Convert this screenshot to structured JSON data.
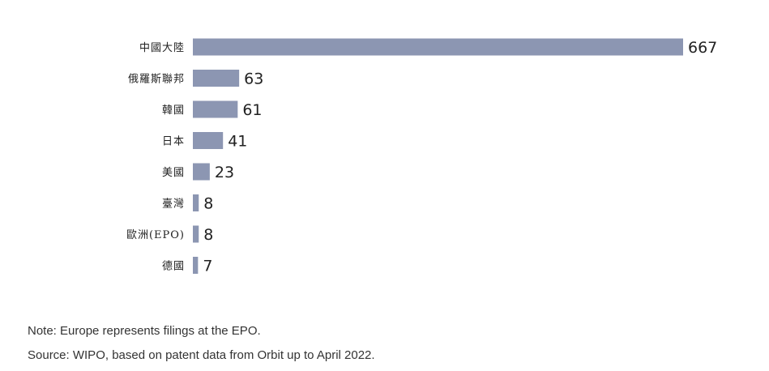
{
  "chart_data": {
    "type": "bar",
    "orientation": "horizontal",
    "categories": [
      "中國大陸",
      "俄羅斯聯邦",
      "韓國",
      "日本",
      "美國",
      "臺灣",
      "歐洲(EPO)",
      "德國"
    ],
    "values": [
      667,
      63,
      61,
      41,
      23,
      8,
      8,
      7
    ],
    "bar_color": "#8c96b2",
    "xlim": [
      0,
      667
    ],
    "grid": false,
    "legend": "none",
    "data_labels": true
  },
  "notes": {
    "note": "Note: Europe represents filings at the EPO.",
    "source": "Source: WIPO, based on patent data from Orbit up to April 2022."
  }
}
